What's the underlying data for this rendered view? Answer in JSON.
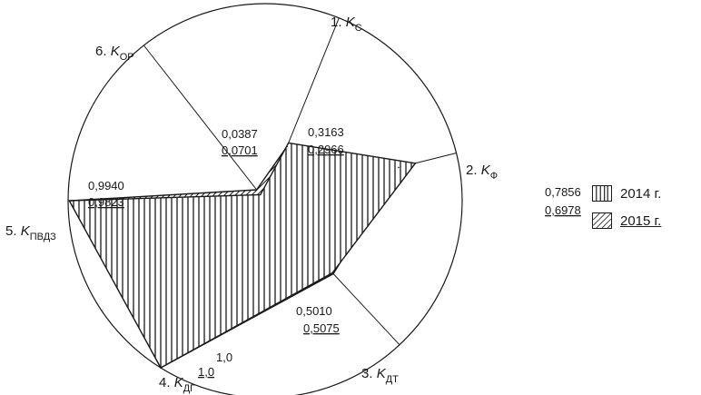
{
  "chart_data": {
    "type": "radar",
    "title": "",
    "axes": [
      {
        "id": "Kс",
        "number": "1.",
        "symbol": "K",
        "sub": "С"
      },
      {
        "id": "Kф",
        "number": "2.",
        "symbol": "K",
        "sub": "Ф"
      },
      {
        "id": "Kдт",
        "number": "3.",
        "symbol": "K",
        "sub": "ДТ"
      },
      {
        "id": "Kдг",
        "number": "4.",
        "symbol": "K",
        "sub": "ДГ"
      },
      {
        "id": "Kпвдз",
        "number": "5.",
        "symbol": "K",
        "sub": "ПВДЗ"
      },
      {
        "id": "Kор",
        "number": "6.",
        "symbol": "K",
        "sub": "ОР"
      }
    ],
    "series": [
      {
        "name": "2014 г.",
        "values": [
          0.3163,
          0.7856,
          0.501,
          1.0,
          0.994,
          0.0387
        ],
        "labels": [
          "0,3163",
          "0,7856",
          "0,5010",
          "1,0",
          "0,9940",
          "0,0387"
        ],
        "fill": "vertical-hatch"
      },
      {
        "name": "2015 г.",
        "values": [
          0.2966,
          0.6978,
          0.5075,
          1.0,
          0.9823,
          0.0701
        ],
        "labels": [
          "0,2966",
          "0,6978",
          "0,5075",
          "1,0",
          "0,9823",
          "0,0701"
        ],
        "fill": "diagonal-hatch",
        "underlined": true
      }
    ],
    "range": [
      0,
      1
    ],
    "legend_position": "right"
  },
  "legend": {
    "items": [
      {
        "label": "2014 г.",
        "pattern": "vertical-hatch",
        "underlined": false
      },
      {
        "label": "2015 г.",
        "pattern": "diagonal-hatch",
        "underlined": true
      }
    ]
  },
  "colors": {
    "ink": "#1a1a1a",
    "background": "#ffffff"
  }
}
